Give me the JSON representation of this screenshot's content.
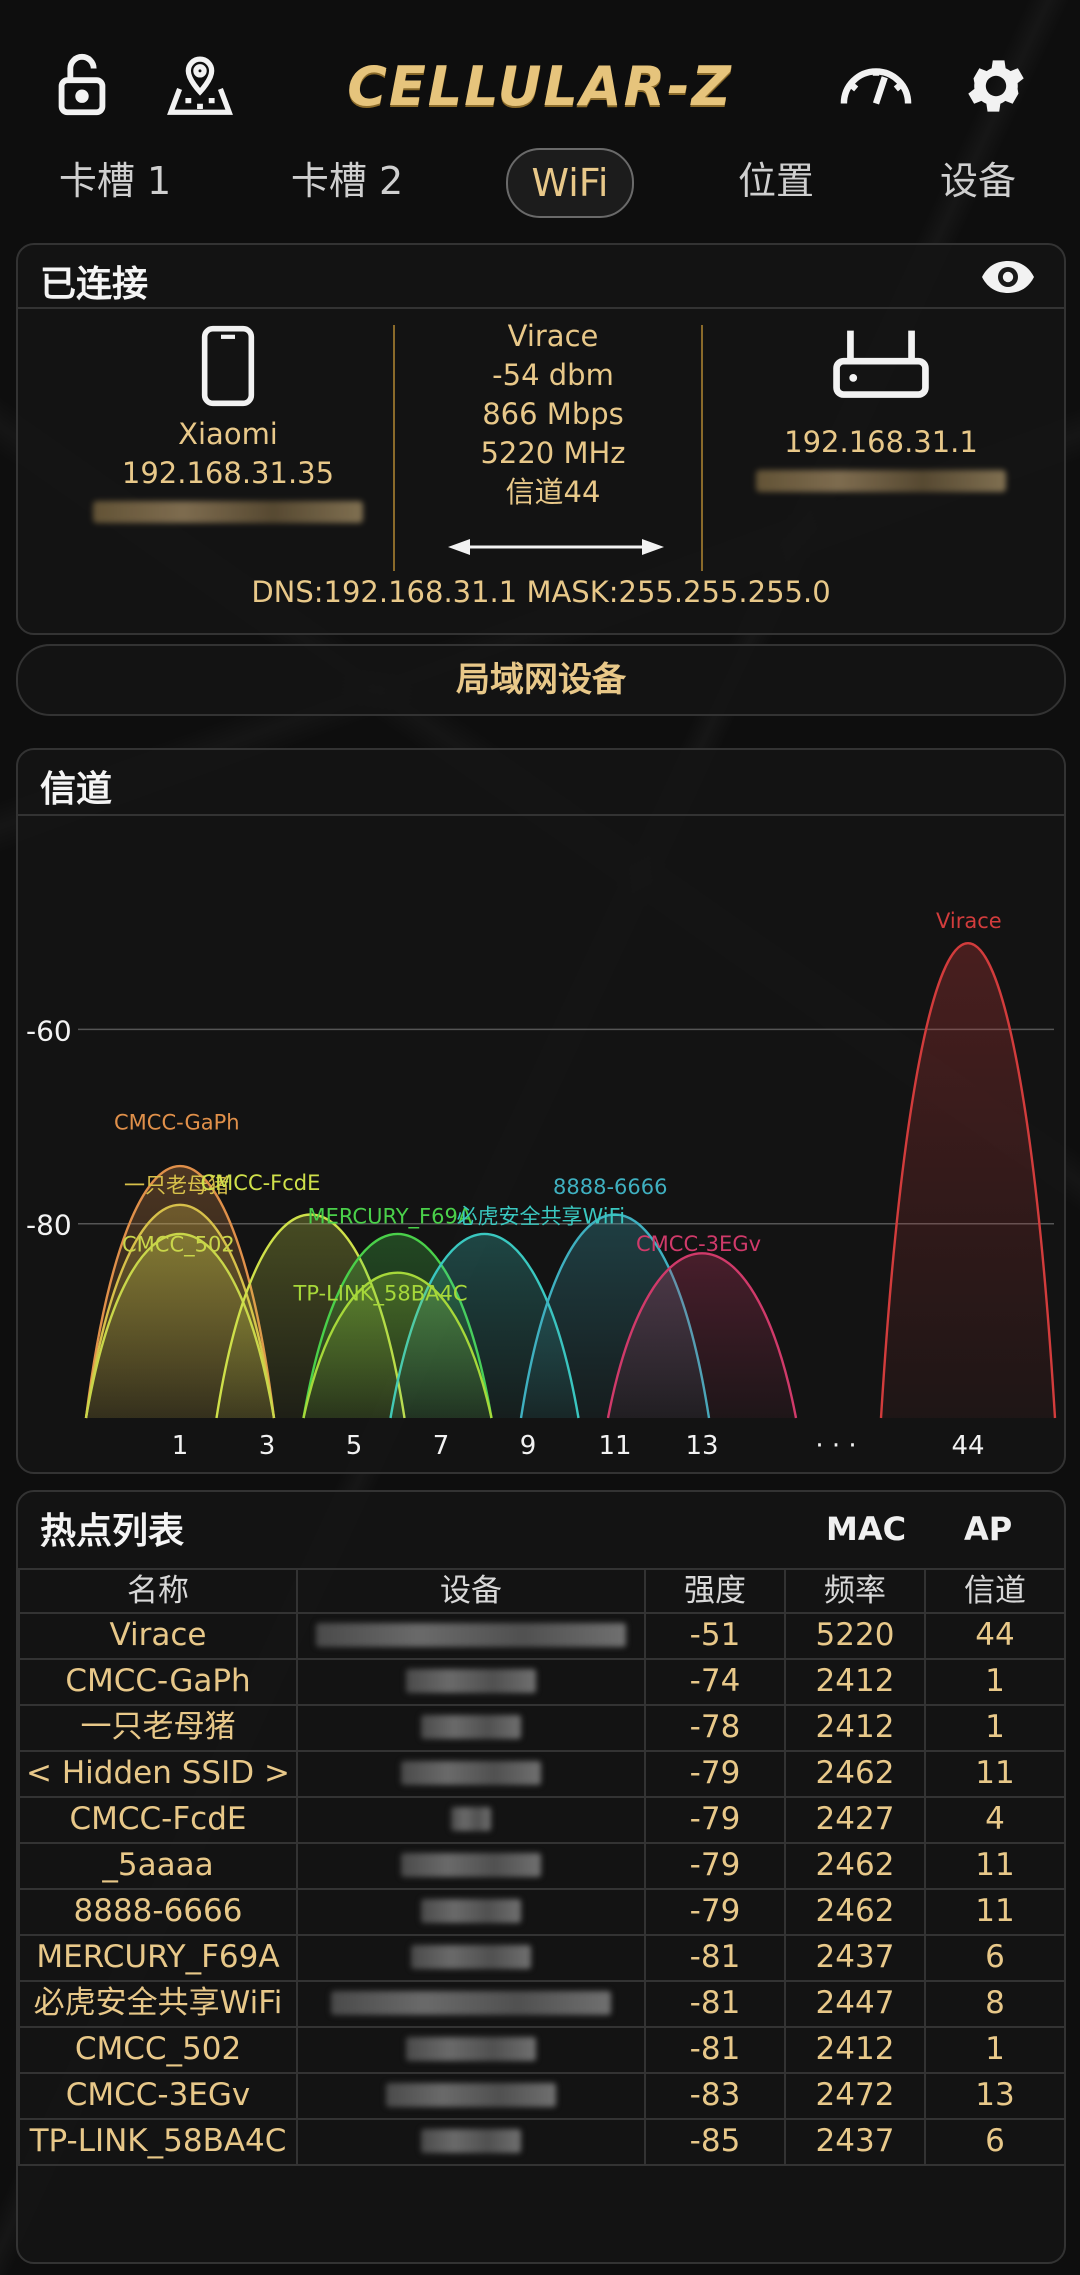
{
  "app": {
    "logo": "CELLULAR-Z",
    "icons": [
      "lock-icon",
      "map-pin-icon",
      "speedometer-icon",
      "gear-icon"
    ],
    "accent": "#e8c889"
  },
  "tabs": [
    {
      "label": "卡槽 1",
      "active": false
    },
    {
      "label": "卡槽 2",
      "active": false
    },
    {
      "label": "WiFi",
      "active": true
    },
    {
      "label": "位置",
      "active": false
    },
    {
      "label": "设备",
      "active": false
    }
  ],
  "connected": {
    "title": "已连接",
    "device": {
      "name": "Xiaomi",
      "ip": "192.168.31.35"
    },
    "link": {
      "ssid": "Virace",
      "signal": "-54 dbm",
      "speed": "866 Mbps",
      "frequency": "5220 MHz",
      "channel": "信道44"
    },
    "router": {
      "ip": "192.168.31.1"
    },
    "dns_line": "DNS:192.168.31.1  MASK:255.255.255.0"
  },
  "lan_button": "局域网设备",
  "channel_panel": {
    "title": "信道"
  },
  "chart_data": {
    "type": "area",
    "title": "",
    "ylabel": "",
    "ylim": [
      -100,
      -51
    ],
    "y_ticks": [
      "-60",
      "-80"
    ],
    "x_ticks": [
      "1",
      "3",
      "5",
      "7",
      "9",
      "11",
      "13",
      "· · ·",
      "44"
    ],
    "series": [
      {
        "name": "CMCC-GaPh",
        "channel": 1,
        "dbm": -74,
        "color": "#e0904a"
      },
      {
        "name": "一只老母猪",
        "channel": 1,
        "dbm": -78,
        "color": "#d7c04a"
      },
      {
        "name": "CMCC_502",
        "channel": 1,
        "dbm": -81,
        "color": "#c9d64a"
      },
      {
        "name": "CMCC-FcdE",
        "channel": 4,
        "dbm": -79,
        "color": "#cfe04a"
      },
      {
        "name": "MERCURY_F69A",
        "channel": 6,
        "dbm": -81,
        "color": "#4ad04a"
      },
      {
        "name": "必虎安全共享WiFi",
        "channel": 8,
        "dbm": -81,
        "color": "#3ac8c0"
      },
      {
        "name": "TP-LINK_58BA4C",
        "channel": 6,
        "dbm": -85,
        "color": "#a6d83a"
      },
      {
        "name": "8888-6666",
        "channel": 11,
        "dbm": -79,
        "color": "#3fb0c0"
      },
      {
        "name": "CMCC-3EGv",
        "channel": 13,
        "dbm": -83,
        "color": "#d03a6a"
      },
      {
        "name": "Virace",
        "channel": 44,
        "dbm": -51,
        "color": "#d23c3c"
      }
    ]
  },
  "hotspot_panel": {
    "title": "热点列表",
    "mac_label": "MAC",
    "ap_label": "AP",
    "columns": [
      "名称",
      "设备",
      "强度",
      "频率",
      "信道"
    ],
    "rows": [
      {
        "name": "Virace",
        "strength": "-51",
        "freq": "5220",
        "channel": "44"
      },
      {
        "name": "CMCC-GaPh",
        "strength": "-74",
        "freq": "2412",
        "channel": "1"
      },
      {
        "name": "一只老母猪",
        "strength": "-78",
        "freq": "2412",
        "channel": "1"
      },
      {
        "name": "< Hidden SSID >",
        "strength": "-79",
        "freq": "2462",
        "channel": "11"
      },
      {
        "name": "CMCC-FcdE",
        "strength": "-79",
        "freq": "2427",
        "channel": "4"
      },
      {
        "name": "_5aaaa",
        "strength": "-79",
        "freq": "2462",
        "channel": "11"
      },
      {
        "name": "8888-6666",
        "strength": "-79",
        "freq": "2462",
        "channel": "11"
      },
      {
        "name": "MERCURY_F69A",
        "strength": "-81",
        "freq": "2437",
        "channel": "6"
      },
      {
        "name": "必虎安全共享WiFi",
        "strength": "-81",
        "freq": "2447",
        "channel": "8"
      },
      {
        "name": "CMCC_502",
        "strength": "-81",
        "freq": "2412",
        "channel": "1"
      },
      {
        "name": "CMCC-3EGv",
        "strength": "-83",
        "freq": "2472",
        "channel": "13"
      },
      {
        "name": "TP-LINK_58BA4C",
        "strength": "-85",
        "freq": "2437",
        "channel": "6"
      }
    ]
  }
}
